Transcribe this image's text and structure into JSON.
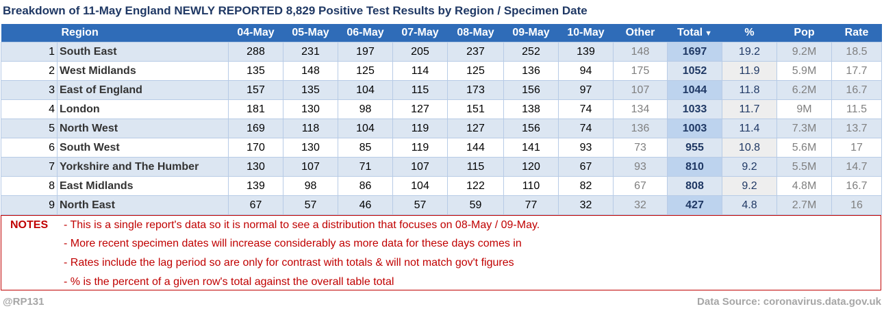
{
  "title": "Breakdown of 11-May England NEWLY REPORTED 8,829 Positive Test Results by Region / Specimen Date",
  "headers": {
    "rank": "",
    "region": "Region",
    "d1": "04-May",
    "d2": "05-May",
    "d3": "06-May",
    "d4": "07-May",
    "d5": "08-May",
    "d6": "09-May",
    "d7": "10-May",
    "other": "Other",
    "total": "Total",
    "total_sort_icon": "▼",
    "pct": "%",
    "pop": "Pop",
    "rate": "Rate"
  },
  "rows": [
    {
      "rank": "1",
      "region": "South East",
      "d1": "288",
      "d2": "231",
      "d3": "197",
      "d4": "205",
      "d5": "237",
      "d6": "252",
      "d7": "139",
      "other": "148",
      "total": "1697",
      "pct": "19.2",
      "pop": "9.2M",
      "rate": "18.5"
    },
    {
      "rank": "2",
      "region": "West Midlands",
      "d1": "135",
      "d2": "148",
      "d3": "125",
      "d4": "114",
      "d5": "125",
      "d6": "136",
      "d7": "94",
      "other": "175",
      "total": "1052",
      "pct": "11.9",
      "pop": "5.9M",
      "rate": "17.7"
    },
    {
      "rank": "3",
      "region": "East of England",
      "d1": "157",
      "d2": "135",
      "d3": "104",
      "d4": "115",
      "d5": "173",
      "d6": "156",
      "d7": "97",
      "other": "107",
      "total": "1044",
      "pct": "11.8",
      "pop": "6.2M",
      "rate": "16.7"
    },
    {
      "rank": "4",
      "region": "London",
      "d1": "181",
      "d2": "130",
      "d3": "98",
      "d4": "127",
      "d5": "151",
      "d6": "138",
      "d7": "74",
      "other": "134",
      "total": "1033",
      "pct": "11.7",
      "pop": "9M",
      "rate": "11.5"
    },
    {
      "rank": "5",
      "region": "North West",
      "d1": "169",
      "d2": "118",
      "d3": "104",
      "d4": "119",
      "d5": "127",
      "d6": "156",
      "d7": "74",
      "other": "136",
      "total": "1003",
      "pct": "11.4",
      "pop": "7.3M",
      "rate": "13.7"
    },
    {
      "rank": "6",
      "region": "South West",
      "d1": "170",
      "d2": "130",
      "d3": "85",
      "d4": "119",
      "d5": "144",
      "d6": "141",
      "d7": "93",
      "other": "73",
      "total": "955",
      "pct": "10.8",
      "pop": "5.6M",
      "rate": "17"
    },
    {
      "rank": "7",
      "region": "Yorkshire and The Humber",
      "d1": "130",
      "d2": "107",
      "d3": "71",
      "d4": "107",
      "d5": "115",
      "d6": "120",
      "d7": "67",
      "other": "93",
      "total": "810",
      "pct": "9.2",
      "pop": "5.5M",
      "rate": "14.7"
    },
    {
      "rank": "8",
      "region": "East Midlands",
      "d1": "139",
      "d2": "98",
      "d3": "86",
      "d4": "104",
      "d5": "122",
      "d6": "110",
      "d7": "82",
      "other": "67",
      "total": "808",
      "pct": "9.2",
      "pop": "4.8M",
      "rate": "16.7"
    },
    {
      "rank": "9",
      "region": "North East",
      "d1": "67",
      "d2": "57",
      "d3": "46",
      "d4": "57",
      "d5": "59",
      "d6": "77",
      "d7": "32",
      "other": "32",
      "total": "427",
      "pct": "4.8",
      "pop": "2.7M",
      "rate": "16"
    }
  ],
  "notes": {
    "label": "NOTES",
    "lines": [
      "- This is a single report's data so it is normal to see a distribution that focuses on 08-May / 09-May.",
      "- More recent specimen dates will increase considerably as more data for these days comes in",
      "- Rates include the lag period so are only for contrast with totals & will not match gov't figures",
      "- % is the percent of a given row's total against the overall table total"
    ]
  },
  "footer": {
    "author": "@RP131",
    "source": "Data Source: coronavirus.data.gov.uk"
  },
  "colors": {
    "title": "#1f3864",
    "header_bg": "#2f6cb8",
    "row_alt_bg": "#dce6f2",
    "notes_red": "#c00000",
    "footer_grey": "#a6a6a6"
  }
}
